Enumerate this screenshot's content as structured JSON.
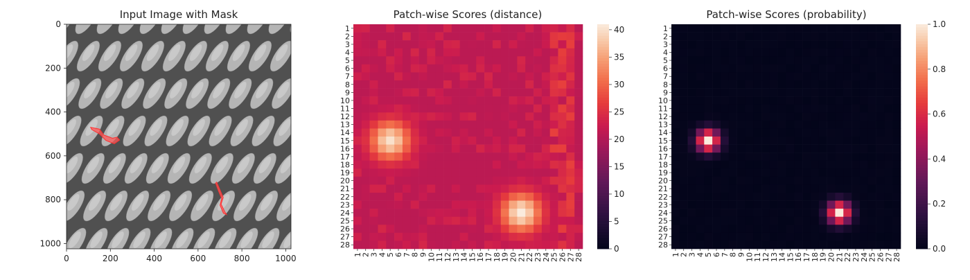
{
  "chart_data": [
    {
      "type": "image",
      "title": "Input Image with Mask",
      "xlim": [
        0,
        1024
      ],
      "ylim": [
        1024,
        0
      ],
      "xticks": [
        0,
        200,
        400,
        600,
        800,
        1000
      ],
      "yticks": [
        0,
        200,
        400,
        600,
        800,
        1000
      ],
      "mask_regions": [
        {
          "label": "defect",
          "points": [
            [
              110,
              470
            ],
            [
              150,
              478
            ],
            [
              170,
              505
            ],
            [
              210,
              520
            ],
            [
              230,
              515
            ],
            [
              242,
              528
            ],
            [
              218,
              545
            ],
            [
              180,
              530
            ],
            [
              150,
              500
            ],
            [
              115,
              480
            ]
          ]
        },
        {
          "label": "defect",
          "points": [
            [
              685,
              720
            ],
            [
              700,
              755
            ],
            [
              715,
              790
            ],
            [
              705,
              820
            ],
            [
              722,
              855
            ],
            [
              730,
              868
            ],
            [
              716,
              862
            ],
            [
              700,
              825
            ],
            [
              708,
              795
            ],
            [
              693,
              760
            ],
            [
              680,
              725
            ]
          ]
        }
      ]
    },
    {
      "type": "heatmap",
      "title": "Patch-wise Scores (distance)",
      "rows": 28,
      "cols": 28,
      "row_labels": [
        "1",
        "2",
        "3",
        "4",
        "5",
        "6",
        "7",
        "8",
        "9",
        "10",
        "11",
        "12",
        "13",
        "14",
        "15",
        "16",
        "17",
        "18",
        "19",
        "20",
        "21",
        "22",
        "23",
        "24",
        "25",
        "26",
        "27",
        "28"
      ],
      "col_labels": [
        "1",
        "2",
        "3",
        "4",
        "5",
        "6",
        "7",
        "8",
        "9",
        "10",
        "11",
        "12",
        "13",
        "14",
        "15",
        "16",
        "17",
        "18",
        "19",
        "20",
        "21",
        "22",
        "23",
        "24",
        "25",
        "26",
        "27",
        "28"
      ],
      "colorbar": {
        "min": 0,
        "max": 41,
        "ticks": [
          0,
          5,
          10,
          15,
          20,
          25,
          30,
          35,
          40
        ]
      },
      "colormap": "rocket",
      "baseline": 21,
      "hotspots": [
        {
          "row": 15,
          "col": 5,
          "peak": 40
        },
        {
          "row": 24,
          "col": 21,
          "peak": 41
        }
      ]
    },
    {
      "type": "heatmap",
      "title": "Patch-wise Scores (probability)",
      "rows": 28,
      "cols": 28,
      "row_labels": [
        "1",
        "2",
        "3",
        "4",
        "5",
        "6",
        "7",
        "8",
        "9",
        "10",
        "11",
        "12",
        "13",
        "14",
        "15",
        "16",
        "17",
        "18",
        "19",
        "20",
        "21",
        "22",
        "23",
        "24",
        "25",
        "26",
        "27",
        "28"
      ],
      "col_labels": [
        "1",
        "2",
        "3",
        "4",
        "5",
        "6",
        "7",
        "8",
        "9",
        "10",
        "11",
        "12",
        "13",
        "14",
        "15",
        "16",
        "17",
        "18",
        "19",
        "20",
        "21",
        "22",
        "23",
        "24",
        "25",
        "26",
        "27",
        "28"
      ],
      "colorbar": {
        "min": 0,
        "max": 1.0,
        "ticks": [
          "0.0",
          "0.2",
          "0.4",
          "0.6",
          "0.8",
          "1.0"
        ]
      },
      "colormap": "rocket",
      "baseline": 0.0,
      "hotspots": [
        {
          "row": 15,
          "col": 5,
          "peak": 1.0
        },
        {
          "row": 24,
          "col": 21,
          "peak": 1.0
        }
      ]
    }
  ]
}
